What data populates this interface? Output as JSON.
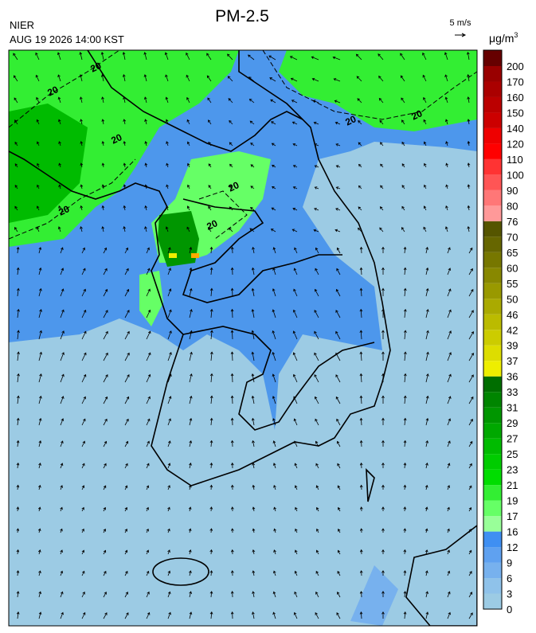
{
  "header": {
    "agency": "NIER",
    "datetime": "AUG 19 2026 14:00 KST",
    "title": "PM-2.5"
  },
  "wind_scale": {
    "label": "5 m/s"
  },
  "colorbar": {
    "unit": "μg/m",
    "unit_exponent": "3",
    "levels": [
      0,
      3,
      6,
      9,
      12,
      16,
      17,
      19,
      21,
      23,
      25,
      27,
      29,
      31,
      33,
      36,
      37,
      39,
      42,
      46,
      50,
      55,
      60,
      65,
      70,
      76,
      80,
      90,
      100,
      110,
      120,
      140,
      150,
      160,
      170,
      200
    ],
    "colors": [
      "#9ccbe4",
      "#8fc2ea",
      "#77b1ee",
      "#5fa1f0",
      "#3f8ff2",
      "#99ff99",
      "#66ff66",
      "#33ee33",
      "#00dd00",
      "#00cc00",
      "#00bb00",
      "#00a800",
      "#009600",
      "#008500",
      "#006e00",
      "#eeee00",
      "#dddd00",
      "#cccc00",
      "#bbbb00",
      "#aaaa00",
      "#999900",
      "#888800",
      "#777700",
      "#666600",
      "#555500",
      "#ff9999",
      "#ff7777",
      "#ff5555",
      "#ff3333",
      "#ff0000",
      "#ee0000",
      "#cc0000",
      "#bb0000",
      "#aa0000",
      "#990000",
      "#660000"
    ]
  },
  "contour_labels": [
    "20",
    "20",
    "20",
    "20",
    "20",
    "20",
    "20",
    "20"
  ]
}
